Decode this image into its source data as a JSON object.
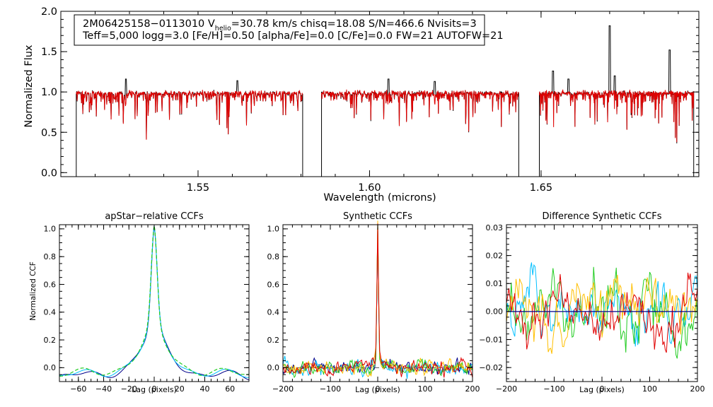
{
  "chart_data": [
    {
      "type": "line",
      "title": "",
      "xlabel": "Wavelength (microns)",
      "ylabel": "Normalized Flux",
      "xlim": [
        1.51,
        1.696
      ],
      "ylim": [
        -0.05,
        2.0
      ],
      "xticks": [
        1.55,
        1.6,
        1.65
      ],
      "xticklabels": [
        "1.55",
        "1.60",
        "1.65"
      ],
      "yticks": [
        0.0,
        0.5,
        1.0,
        1.5,
        2.0
      ],
      "yticklabels": [
        "0.0",
        "0.5",
        "1.0",
        "1.5",
        "2.0"
      ],
      "info_line1_parts": [
        "2M06425158−0113010  V",
        "helio",
        "=30.78 km/s  chisq=18.08  S/N=466.6  Nvisits=3"
      ],
      "info_line2": "Teff=5,000 logg=3.0 [Fe/H]=0.50 [alpha/Fe]=0.0 [C/Fe]=0.0 FW=21 AUTOFW=21",
      "chips": [
        [
          1.5145,
          1.5805
        ],
        [
          1.586,
          1.6435
        ],
        [
          1.6495,
          1.6945
        ]
      ],
      "emission_lines": [
        {
          "x": 1.529,
          "y": 1.16
        },
        {
          "x": 1.5615,
          "y": 1.14
        },
        {
          "x": 1.6055,
          "y": 1.16
        },
        {
          "x": 1.619,
          "y": 1.13
        },
        {
          "x": 1.6535,
          "y": 1.26
        },
        {
          "x": 1.658,
          "y": 1.16
        },
        {
          "x": 1.67,
          "y": 1.82
        },
        {
          "x": 1.6715,
          "y": 1.2
        },
        {
          "x": 1.6875,
          "y": 1.52
        }
      ],
      "series": [
        {
          "name": "observed",
          "color": "#000000"
        },
        {
          "name": "model",
          "color": "#e00000"
        }
      ]
    },
    {
      "type": "line",
      "title": "apStar−relative CCFs",
      "xlabel": "Lag (pixels)",
      "ylabel": "Normalized CCF",
      "xlim": [
        -75,
        75
      ],
      "ylim": [
        -0.1,
        1.03
      ],
      "xticks": [
        -60,
        -40,
        -20,
        0,
        20,
        40,
        60
      ],
      "xticklabels": [
        "−60",
        "−40",
        "−20",
        "0",
        "20",
        "40",
        "60"
      ],
      "yticks": [
        0.0,
        0.2,
        0.4,
        0.6,
        0.8,
        1.0
      ],
      "yticklabels": [
        "0.0",
        "0.2",
        "0.4",
        "0.6",
        "0.8",
        "1.0"
      ],
      "series": [
        {
          "name": "visit 1",
          "color": "#00008b"
        },
        {
          "name": "visit 2",
          "color": "#00bfff"
        },
        {
          "name": "visit 3",
          "color": "#22cc22"
        }
      ]
    },
    {
      "type": "line",
      "title": "Synthetic CCFs",
      "xlabel": "Lag (pixels)",
      "ylabel": "",
      "xlim": [
        -200,
        200
      ],
      "ylim": [
        -0.1,
        1.03
      ],
      "xticks": [
        -200,
        -100,
        0,
        100,
        200
      ],
      "xticklabels": [
        "−200",
        "−100",
        "0",
        "100",
        "200"
      ],
      "yticks": [
        0.0,
        0.2,
        0.4,
        0.6,
        0.8,
        1.0
      ],
      "yticklabels": [
        "0.0",
        "0.2",
        "0.4",
        "0.6",
        "0.8",
        "1.0"
      ],
      "series": [
        {
          "name": "visit 1",
          "color": "#00008b"
        },
        {
          "name": "visit 2",
          "color": "#00bfff"
        },
        {
          "name": "visit 3",
          "color": "#22cc22"
        },
        {
          "name": "visit 4",
          "color": "#ffbf00"
        },
        {
          "name": "visit 5",
          "color": "#e00000"
        }
      ]
    },
    {
      "type": "line",
      "title": "Difference Synthetic CCFs",
      "xlabel": "Lag (pixels)",
      "ylabel": "",
      "xlim": [
        -200,
        200
      ],
      "ylim": [
        -0.025,
        0.031
      ],
      "xticks": [
        -200,
        -100,
        0,
        100,
        200
      ],
      "xticklabels": [
        "−200",
        "−100",
        "0",
        "100",
        "200"
      ],
      "yticks": [
        -0.02,
        -0.01,
        0.0,
        0.01,
        0.02,
        0.03
      ],
      "yticklabels": [
        "−0.02",
        "−0.01",
        "0.00",
        "0.01",
        "0.02",
        "0.03"
      ],
      "series": [
        {
          "name": "visit 1",
          "color": "#00bfff"
        },
        {
          "name": "visit 2",
          "color": "#22cc22"
        },
        {
          "name": "visit 3",
          "color": "#ffbf00"
        },
        {
          "name": "visit 4",
          "color": "#e00000"
        },
        {
          "name": "zero",
          "color": "#00008b"
        }
      ]
    }
  ]
}
